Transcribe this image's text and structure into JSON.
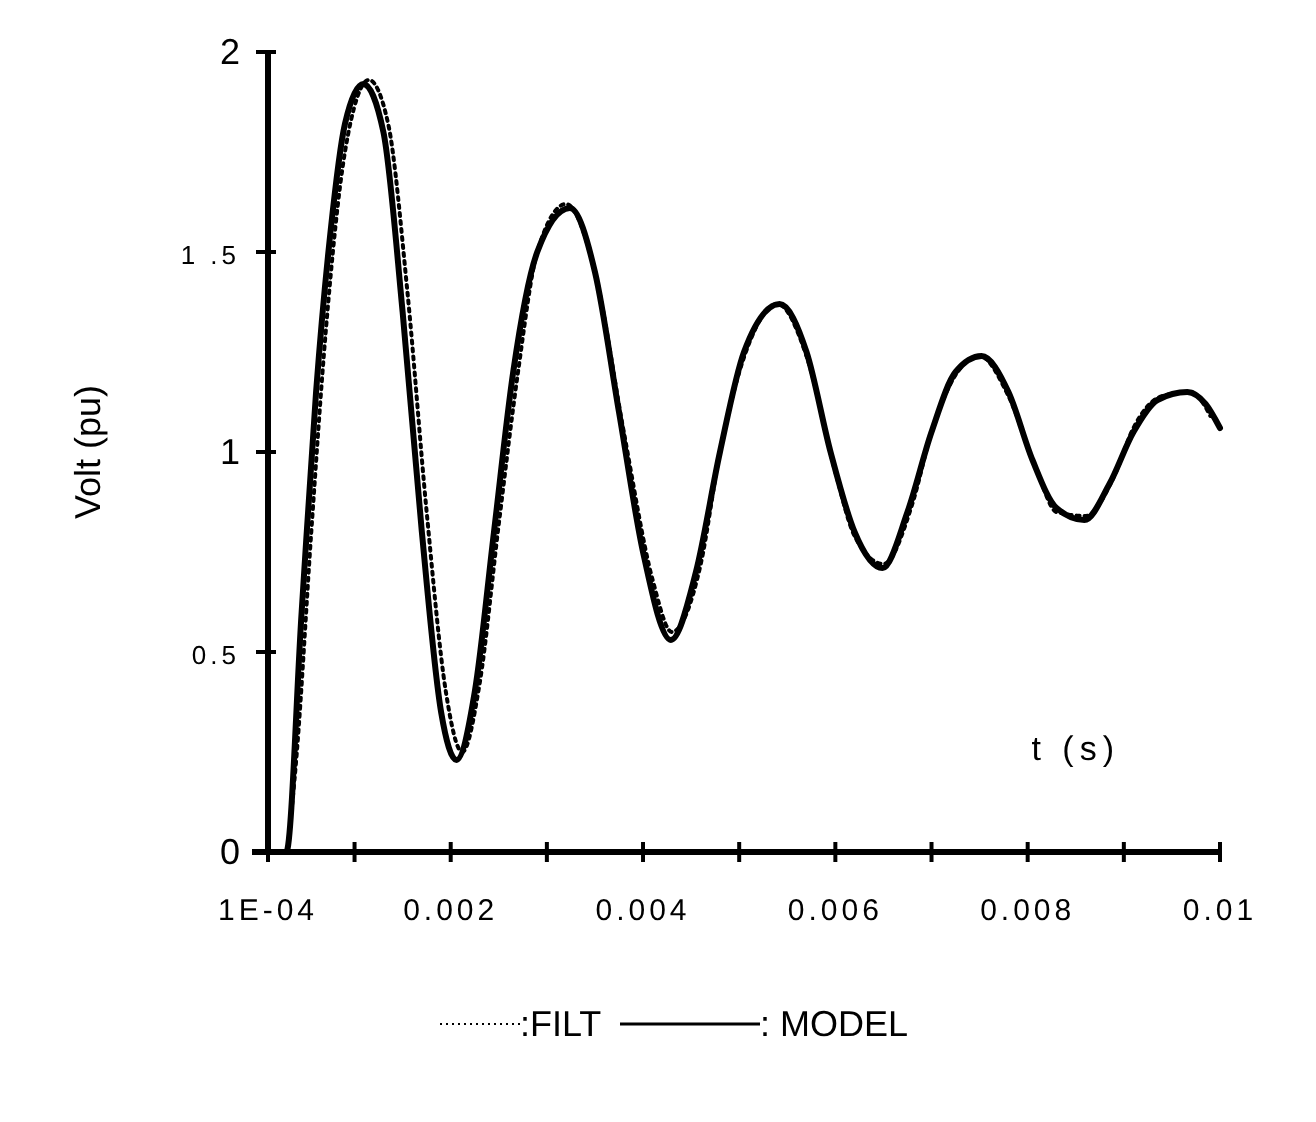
{
  "chart_data": {
    "type": "line",
    "xlabel": "t (s)",
    "ylabel": "Volt (pu)",
    "xlim": [
      0.0001,
      0.01
    ],
    "ylim": [
      0,
      2
    ],
    "xticks": [
      {
        "value": 0.0001,
        "label": "1E-04"
      },
      {
        "value": 0.001,
        "label": null
      },
      0.002,
      {
        "value": 0.003,
        "label": null
      },
      0.004,
      {
        "value": 0.005,
        "label": null
      },
      0.006,
      {
        "value": 0.007,
        "label": null
      },
      0.008,
      {
        "value": 0.009,
        "label": null
      },
      0.01
    ],
    "yticks": [
      0,
      0.5,
      1,
      {
        "value": 1.5,
        "label": "1 .5"
      },
      2
    ],
    "grid": false,
    "legend": "bottom",
    "marker": "none",
    "series": [
      {
        "name": ":FILT",
        "color": "#000000",
        "line_style": "dotted",
        "x": [
          0.0003,
          0.0004,
          0.00055,
          0.0007,
          0.0009,
          0.00115,
          0.00135,
          0.00155,
          0.00175,
          0.00195,
          0.00212,
          0.0023,
          0.0025,
          0.0027,
          0.0029,
          0.0032,
          0.0035,
          0.0038,
          0.0041,
          0.0043,
          0.0046,
          0.0048,
          0.0051,
          0.0054,
          0.0057,
          0.006,
          0.0062,
          0.0065,
          0.0068,
          0.007,
          0.0073,
          0.0075,
          0.0078,
          0.0081,
          0.0083,
          0.0086,
          0.0089,
          0.0091,
          0.0094,
          0.0097,
          0.0099
        ],
        "values": [
          0,
          0.25,
          0.8,
          1.3,
          1.75,
          1.93,
          1.82,
          1.4,
          0.85,
          0.4,
          0.25,
          0.42,
          0.82,
          1.2,
          1.5,
          1.62,
          1.45,
          1.05,
          0.68,
          0.55,
          0.72,
          1.0,
          1.27,
          1.37,
          1.24,
          0.95,
          0.79,
          0.72,
          0.87,
          1.05,
          1.21,
          1.24,
          1.14,
          0.95,
          0.85,
          0.84,
          0.94,
          1.06,
          1.14,
          1.15,
          1.09
        ]
      },
      {
        "name": ": MODEL",
        "color": "#000000",
        "line_style": "solid",
        "x": [
          0.0001,
          0.00029,
          0.00045,
          0.0006,
          0.00075,
          0.0009,
          0.00109,
          0.0013,
          0.0015,
          0.0017,
          0.0019,
          0.00206,
          0.00225,
          0.00245,
          0.00265,
          0.0029,
          0.00324,
          0.0035,
          0.00375,
          0.004,
          0.00429,
          0.00455,
          0.0048,
          0.00505,
          0.00542,
          0.0057,
          0.00595,
          0.0062,
          0.00649,
          0.00675,
          0.007,
          0.00725,
          0.00752,
          0.0078,
          0.00805,
          0.0083,
          0.00859,
          0.00885,
          0.0091,
          0.00935,
          0.00966,
          0.00985,
          0.01
        ],
        "values": [
          0,
          0,
          0.6,
          1.15,
          1.55,
          1.82,
          1.92,
          1.8,
          1.35,
          0.8,
          0.35,
          0.23,
          0.4,
          0.8,
          1.2,
          1.5,
          1.61,
          1.45,
          1.1,
          0.75,
          0.53,
          0.7,
          1.0,
          1.25,
          1.37,
          1.25,
          1.0,
          0.8,
          0.71,
          0.85,
          1.05,
          1.2,
          1.24,
          1.15,
          0.98,
          0.86,
          0.83,
          0.92,
          1.05,
          1.13,
          1.15,
          1.12,
          1.06
        ]
      }
    ]
  }
}
